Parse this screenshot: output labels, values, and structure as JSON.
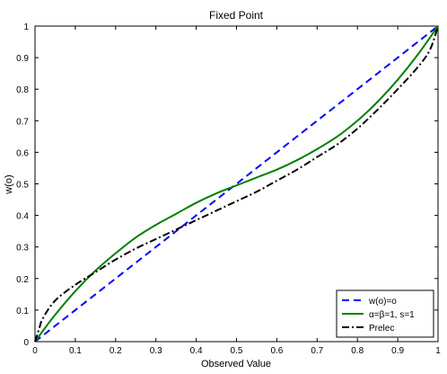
{
  "chart_data": {
    "type": "line",
    "title": "Fixed Point",
    "xlabel": "Observed Value",
    "ylabel": "w(o)",
    "xlim": [
      0,
      1
    ],
    "ylim": [
      0,
      1
    ],
    "xticks": [
      0,
      0.1,
      0.2,
      0.3,
      0.4,
      0.5,
      0.6,
      0.7,
      0.8,
      0.9,
      1
    ],
    "xtick_labels": [
      "0",
      "0.1",
      "0.2",
      "0.3",
      "0.4",
      "0.5",
      "0.6",
      "0.7",
      "0.8",
      "0.9",
      "1"
    ],
    "yticks": [
      0,
      0.1,
      0.2,
      0.3,
      0.4,
      0.5,
      0.6,
      0.7,
      0.8,
      0.9,
      1
    ],
    "ytick_labels": [
      "0",
      "0.1",
      "0.2",
      "0.3",
      "0.4",
      "0.5",
      "0.6",
      "0.7",
      "0.8",
      "0.9",
      "1"
    ],
    "grid": false,
    "legend_position": "bottom-right",
    "series": [
      {
        "name": "w(o)=o",
        "style": "dashed",
        "color": "#0000ff",
        "x": [
          0,
          0.1,
          0.2,
          0.3,
          0.4,
          0.5,
          0.6,
          0.7,
          0.8,
          0.9,
          1
        ],
        "y": [
          0,
          0.1,
          0.2,
          0.3,
          0.4,
          0.5,
          0.6,
          0.7,
          0.8,
          0.9,
          1
        ]
      },
      {
        "name": "α=β=1, s=1",
        "style": "solid",
        "color": "#007f00",
        "x": [
          0,
          0.02,
          0.05,
          0.1,
          0.15,
          0.2,
          0.25,
          0.3,
          0.35,
          0.4,
          0.45,
          0.5,
          0.55,
          0.6,
          0.65,
          0.7,
          0.75,
          0.8,
          0.85,
          0.9,
          0.95,
          1
        ],
        "y": [
          0,
          0.035,
          0.085,
          0.16,
          0.225,
          0.28,
          0.33,
          0.37,
          0.405,
          0.44,
          0.47,
          0.495,
          0.52,
          0.545,
          0.575,
          0.61,
          0.65,
          0.7,
          0.76,
          0.83,
          0.91,
          1
        ]
      },
      {
        "name": "Prelec",
        "style": "dashdot",
        "color": "#000000",
        "x": [
          0,
          0.01,
          0.02,
          0.05,
          0.1,
          0.15,
          0.2,
          0.25,
          0.3,
          0.35,
          0.4,
          0.45,
          0.5,
          0.55,
          0.6,
          0.65,
          0.7,
          0.75,
          0.8,
          0.85,
          0.9,
          0.95,
          0.98,
          1
        ],
        "y": [
          0,
          0.04,
          0.075,
          0.13,
          0.18,
          0.22,
          0.26,
          0.295,
          0.325,
          0.355,
          0.385,
          0.415,
          0.445,
          0.475,
          0.51,
          0.545,
          0.585,
          0.625,
          0.675,
          0.735,
          0.8,
          0.87,
          0.925,
          1
        ]
      }
    ]
  }
}
